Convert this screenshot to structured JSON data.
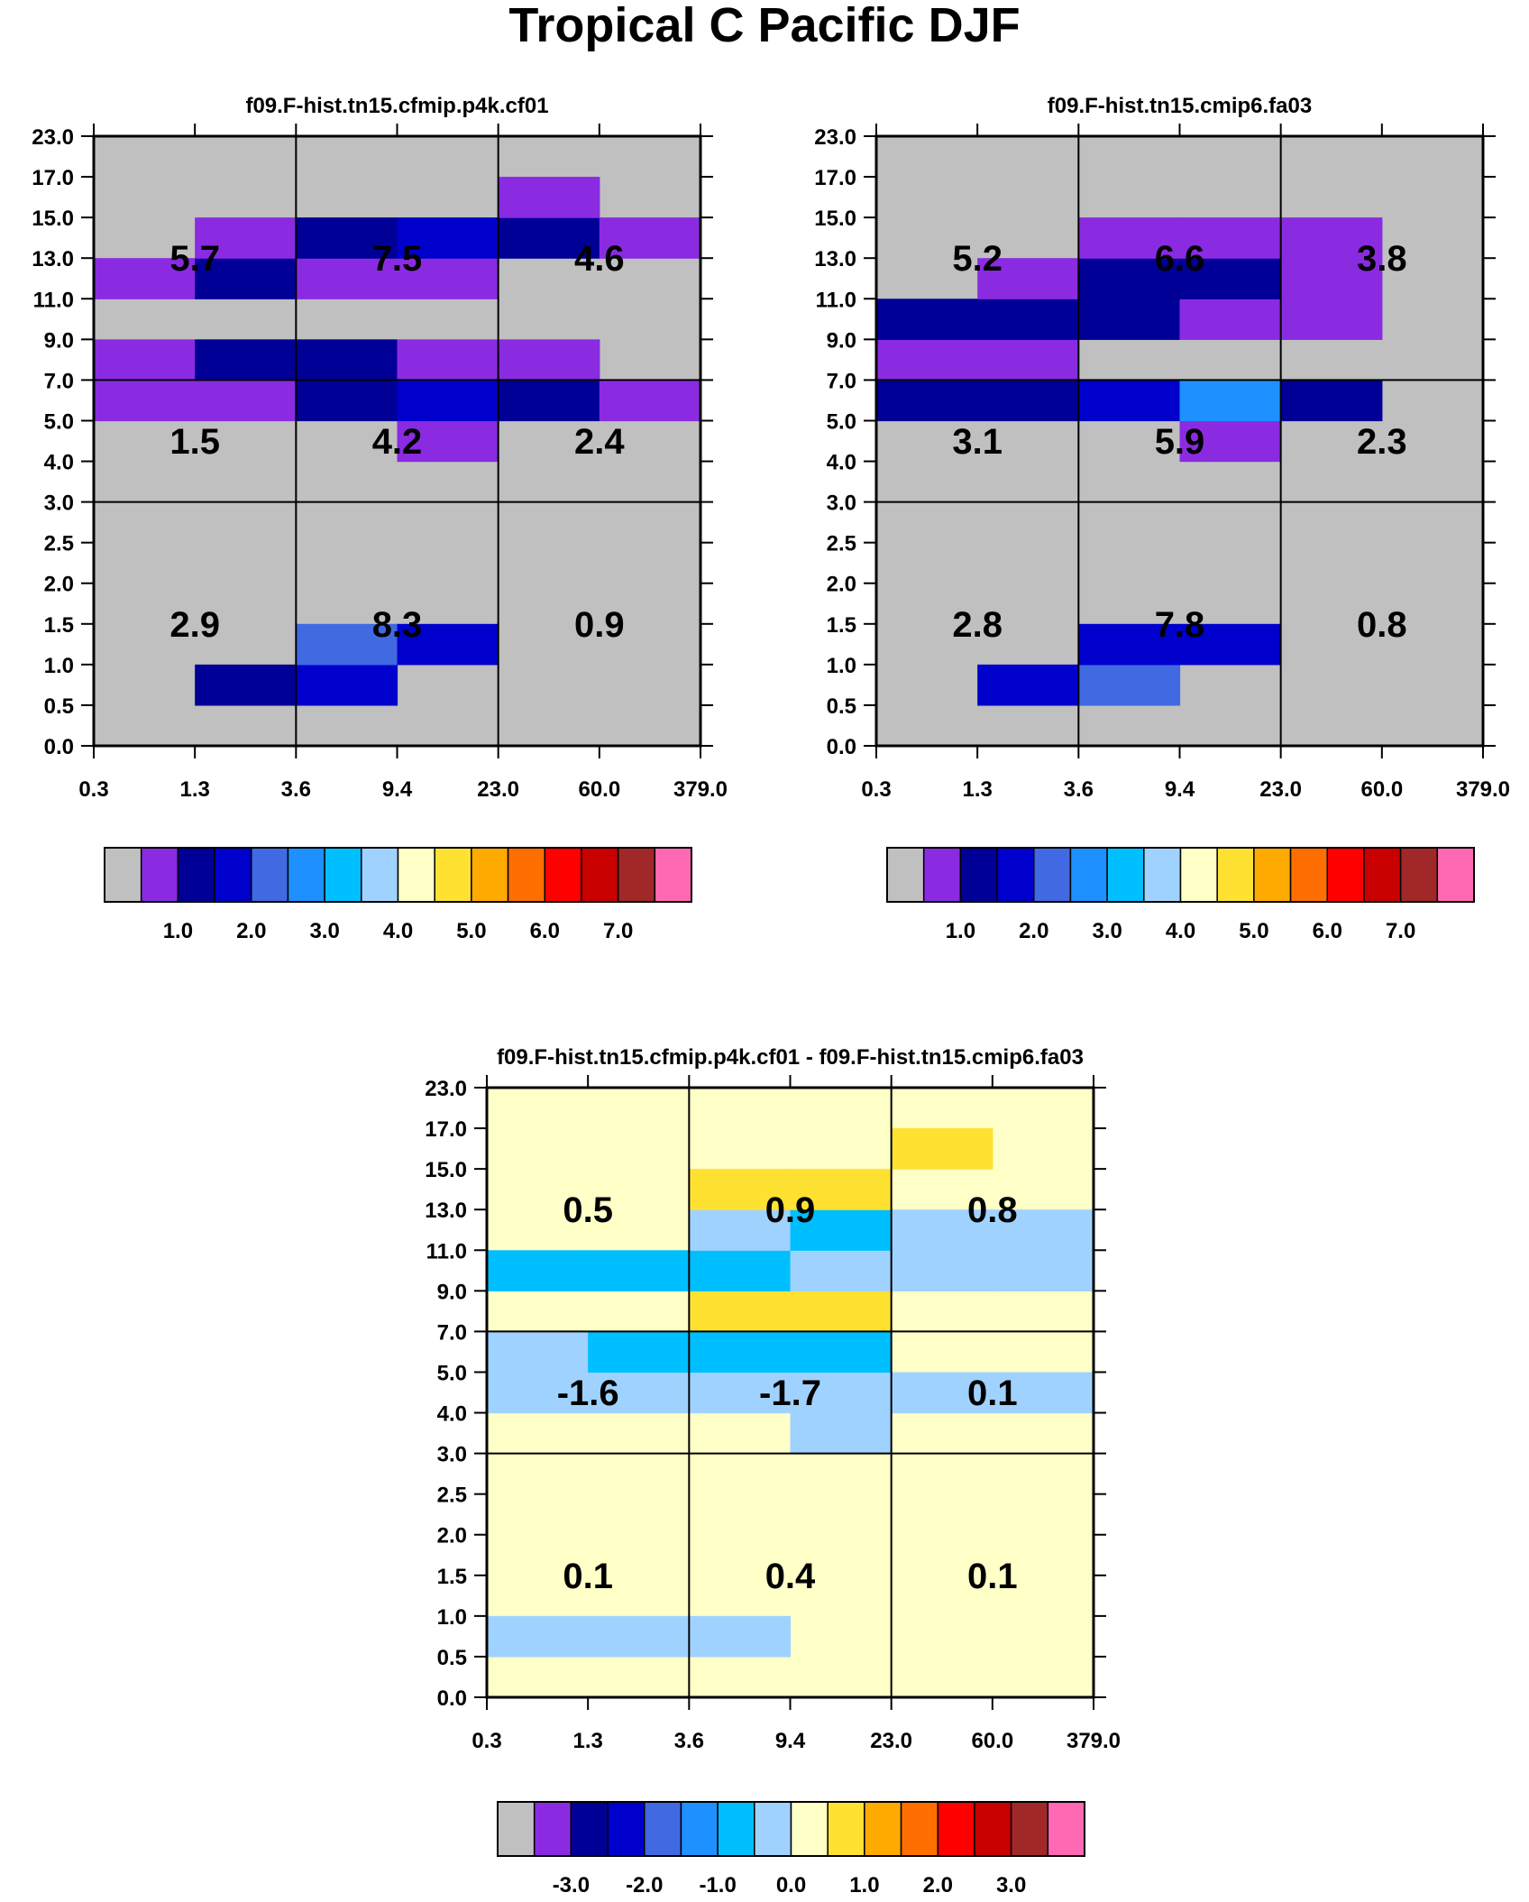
{
  "title": "Tropical C Pacific DJF",
  "colors": {
    "abs": [
      "#c0c0c0",
      "#8a2be2",
      "#000096",
      "#0000cd",
      "#4169e1",
      "#1e90ff",
      "#00bfff",
      "#a0d2ff",
      "#ffffc8",
      "#ffe132",
      "#ffaa00",
      "#ff6e00",
      "#ff0000",
      "#c80000",
      "#a02828",
      "#ff69b4"
    ],
    "diff": [
      "#c0c0c0",
      "#8a2be2",
      "#000096",
      "#0000cd",
      "#4169e1",
      "#1e90ff",
      "#00bfff",
      "#a0d2ff",
      "#ffffc8",
      "#ffe132",
      "#ffaa00",
      "#ff6e00",
      "#ff0000",
      "#c80000",
      "#a02828",
      "#ff69b4"
    ]
  },
  "chart_data": [
    {
      "id": "panel1",
      "type": "heatmap",
      "title": "f09.F-hist.tn15.cfmip.p4k.cf01",
      "x_ticks": [
        "0.3",
        "1.3",
        "3.6",
        "9.4",
        "23.0",
        "60.0",
        "379.0"
      ],
      "y_ticks": [
        "0.0",
        "0.5",
        "1.0",
        "1.5",
        "2.0",
        "2.5",
        "3.0",
        "4.0",
        "5.0",
        "7.0",
        "9.0",
        "11.0",
        "13.0",
        "15.0",
        "17.0",
        "23.0"
      ],
      "background_class": 0,
      "cells": [
        {
          "x": 1,
          "y": 1,
          "c": 2
        },
        {
          "x": 2,
          "y": 1,
          "c": 3
        },
        {
          "x": 2,
          "y": 2,
          "c": 4
        },
        {
          "x": 3,
          "y": 2,
          "c": 3
        },
        {
          "x": 3,
          "y": 7,
          "c": 1
        },
        {
          "x": 0,
          "y": 8,
          "c": 1
        },
        {
          "x": 1,
          "y": 8,
          "c": 1
        },
        {
          "x": 2,
          "y": 8,
          "c": 2
        },
        {
          "x": 3,
          "y": 8,
          "c": 3
        },
        {
          "x": 4,
          "y": 8,
          "c": 2
        },
        {
          "x": 5,
          "y": 8,
          "c": 1
        },
        {
          "x": 0,
          "y": 9,
          "c": 1
        },
        {
          "x": 1,
          "y": 9,
          "c": 2
        },
        {
          "x": 2,
          "y": 9,
          "c": 2
        },
        {
          "x": 3,
          "y": 9,
          "c": 1
        },
        {
          "x": 4,
          "y": 9,
          "c": 1
        },
        {
          "x": 0,
          "y": 11,
          "c": 1
        },
        {
          "x": 1,
          "y": 11,
          "c": 2
        },
        {
          "x": 2,
          "y": 11,
          "c": 1
        },
        {
          "x": 3,
          "y": 11,
          "c": 1
        },
        {
          "x": 1,
          "y": 12,
          "c": 1
        },
        {
          "x": 2,
          "y": 12,
          "c": 2
        },
        {
          "x": 3,
          "y": 12,
          "c": 3
        },
        {
          "x": 4,
          "y": 12,
          "c": 2
        },
        {
          "x": 5,
          "y": 12,
          "c": 1
        },
        {
          "x": 4,
          "y": 13,
          "c": 1
        }
      ],
      "block_sums": [
        {
          "label": "5.7",
          "col": 0,
          "row": 2
        },
        {
          "label": "7.5",
          "col": 1,
          "row": 2
        },
        {
          "label": "4.6",
          "col": 2,
          "row": 2
        },
        {
          "label": "1.5",
          "col": 0,
          "row": 1
        },
        {
          "label": "4.2",
          "col": 1,
          "row": 1
        },
        {
          "label": "2.4",
          "col": 2,
          "row": 1
        },
        {
          "label": "2.9",
          "col": 0,
          "row": 0
        },
        {
          "label": "8.3",
          "col": 1,
          "row": 0
        },
        {
          "label": "0.9",
          "col": 2,
          "row": 0
        }
      ],
      "colorbar": {
        "labels": [
          "1.0",
          "2.0",
          "3.0",
          "4.0",
          "5.0",
          "6.0",
          "7.0"
        ]
      }
    },
    {
      "id": "panel2",
      "type": "heatmap",
      "title": "f09.F-hist.tn15.cmip6.fa03",
      "x_ticks": [
        "0.3",
        "1.3",
        "3.6",
        "9.4",
        "23.0",
        "60.0",
        "379.0"
      ],
      "y_ticks": [
        "0.0",
        "0.5",
        "1.0",
        "1.5",
        "2.0",
        "2.5",
        "3.0",
        "4.0",
        "5.0",
        "7.0",
        "9.0",
        "11.0",
        "13.0",
        "15.0",
        "17.0",
        "23.0"
      ],
      "background_class": 0,
      "cells": [
        {
          "x": 1,
          "y": 1,
          "c": 3
        },
        {
          "x": 2,
          "y": 1,
          "c": 4
        },
        {
          "x": 2,
          "y": 2,
          "c": 3
        },
        {
          "x": 3,
          "y": 2,
          "c": 3
        },
        {
          "x": 3,
          "y": 7,
          "c": 1
        },
        {
          "x": 0,
          "y": 8,
          "c": 2
        },
        {
          "x": 1,
          "y": 8,
          "c": 2
        },
        {
          "x": 2,
          "y": 8,
          "c": 3
        },
        {
          "x": 3,
          "y": 8,
          "c": 5
        },
        {
          "x": 4,
          "y": 8,
          "c": 2
        },
        {
          "x": 0,
          "y": 9,
          "c": 1
        },
        {
          "x": 1,
          "y": 9,
          "c": 1
        },
        {
          "x": 0,
          "y": 10,
          "c": 2
        },
        {
          "x": 1,
          "y": 10,
          "c": 2
        },
        {
          "x": 2,
          "y": 10,
          "c": 2
        },
        {
          "x": 3,
          "y": 10,
          "c": 1
        },
        {
          "x": 4,
          "y": 10,
          "c": 1
        },
        {
          "x": 1,
          "y": 11,
          "c": 1
        },
        {
          "x": 2,
          "y": 11,
          "c": 2
        },
        {
          "x": 3,
          "y": 11,
          "c": 2
        },
        {
          "x": 4,
          "y": 11,
          "c": 1
        },
        {
          "x": 2,
          "y": 12,
          "c": 1
        },
        {
          "x": 3,
          "y": 12,
          "c": 1
        },
        {
          "x": 4,
          "y": 12,
          "c": 1
        }
      ],
      "block_sums": [
        {
          "label": "5.2",
          "col": 0,
          "row": 2
        },
        {
          "label": "6.6",
          "col": 1,
          "row": 2
        },
        {
          "label": "3.8",
          "col": 2,
          "row": 2
        },
        {
          "label": "3.1",
          "col": 0,
          "row": 1
        },
        {
          "label": "5.9",
          "col": 1,
          "row": 1
        },
        {
          "label": "2.3",
          "col": 2,
          "row": 1
        },
        {
          "label": "2.8",
          "col": 0,
          "row": 0
        },
        {
          "label": "7.8",
          "col": 1,
          "row": 0
        },
        {
          "label": "0.8",
          "col": 2,
          "row": 0
        }
      ],
      "colorbar": {
        "labels": [
          "1.0",
          "2.0",
          "3.0",
          "4.0",
          "5.0",
          "6.0",
          "7.0"
        ]
      }
    },
    {
      "id": "panel3",
      "type": "heatmap",
      "title": "f09.F-hist.tn15.cfmip.p4k.cf01 - f09.F-hist.tn15.cmip6.fa03",
      "x_ticks": [
        "0.3",
        "1.3",
        "3.6",
        "9.4",
        "23.0",
        "60.0",
        "379.0"
      ],
      "y_ticks": [
        "0.0",
        "0.5",
        "1.0",
        "1.5",
        "2.0",
        "2.5",
        "3.0",
        "4.0",
        "5.0",
        "7.0",
        "9.0",
        "11.0",
        "13.0",
        "15.0",
        "17.0",
        "23.0"
      ],
      "background_class": 8,
      "cells": [
        {
          "x": 0,
          "y": 1,
          "c": 7
        },
        {
          "x": 1,
          "y": 1,
          "c": 7
        },
        {
          "x": 2,
          "y": 1,
          "c": 7
        },
        {
          "x": 3,
          "y": 6,
          "c": 7
        },
        {
          "x": 0,
          "y": 7,
          "c": 7
        },
        {
          "x": 1,
          "y": 7,
          "c": 7
        },
        {
          "x": 2,
          "y": 7,
          "c": 7
        },
        {
          "x": 3,
          "y": 7,
          "c": 7
        },
        {
          "x": 4,
          "y": 7,
          "c": 7
        },
        {
          "x": 5,
          "y": 7,
          "c": 7
        },
        {
          "x": 0,
          "y": 8,
          "c": 7
        },
        {
          "x": 1,
          "y": 8,
          "c": 6
        },
        {
          "x": 2,
          "y": 8,
          "c": 6
        },
        {
          "x": 3,
          "y": 8,
          "c": 6
        },
        {
          "x": 2,
          "y": 9,
          "c": 9
        },
        {
          "x": 3,
          "y": 9,
          "c": 9
        },
        {
          "x": 0,
          "y": 10,
          "c": 6
        },
        {
          "x": 1,
          "y": 10,
          "c": 6
        },
        {
          "x": 2,
          "y": 10,
          "c": 6
        },
        {
          "x": 3,
          "y": 10,
          "c": 7
        },
        {
          "x": 4,
          "y": 10,
          "c": 7
        },
        {
          "x": 5,
          "y": 10,
          "c": 7
        },
        {
          "x": 2,
          "y": 11,
          "c": 7
        },
        {
          "x": 3,
          "y": 11,
          "c": 6
        },
        {
          "x": 4,
          "y": 11,
          "c": 7
        },
        {
          "x": 5,
          "y": 11,
          "c": 7
        },
        {
          "x": 2,
          "y": 12,
          "c": 9
        },
        {
          "x": 3,
          "y": 12,
          "c": 9
        },
        {
          "x": 4,
          "y": 13,
          "c": 9
        }
      ],
      "block_sums": [
        {
          "label": "0.5",
          "col": 0,
          "row": 2
        },
        {
          "label": "0.9",
          "col": 1,
          "row": 2
        },
        {
          "label": "0.8",
          "col": 2,
          "row": 2
        },
        {
          "label": "-1.6",
          "col": 0,
          "row": 1
        },
        {
          "label": "-1.7",
          "col": 1,
          "row": 1
        },
        {
          "label": "0.1",
          "col": 2,
          "row": 1
        },
        {
          "label": "0.1",
          "col": 0,
          "row": 0
        },
        {
          "label": "0.4",
          "col": 1,
          "row": 0
        },
        {
          "label": "0.1",
          "col": 2,
          "row": 0
        }
      ],
      "colorbar": {
        "labels": [
          "-3.0",
          "-2.0",
          "-1.0",
          "0.0",
          "1.0",
          "2.0",
          "3.0"
        ]
      }
    }
  ]
}
